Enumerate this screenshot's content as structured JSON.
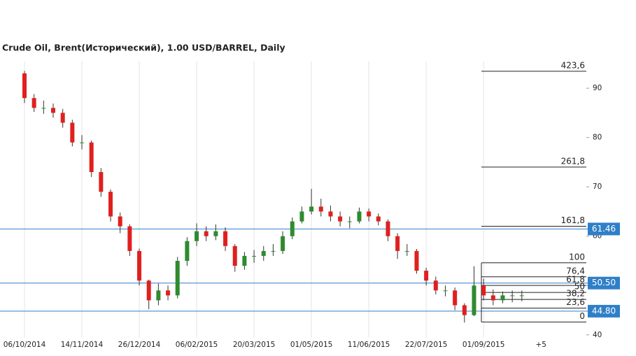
{
  "chart_data": {
    "type": "candlestick",
    "title": "Crude Oil, Brent(Исторический), 1.00 USD/BARREL, Daily",
    "categories": [
      "06/10/2014",
      null,
      null,
      null,
      null,
      null,
      "14/11/2014",
      null,
      null,
      null,
      null,
      null,
      "26/12/2014",
      null,
      null,
      null,
      null,
      null,
      "06/02/2015",
      null,
      null,
      null,
      null,
      null,
      "20/03/2015",
      null,
      null,
      null,
      null,
      null,
      "01/05/2015",
      null,
      null,
      null,
      null,
      null,
      "11/06/2015",
      null,
      null,
      null,
      null,
      null,
      "22/07/2015",
      null,
      null,
      null,
      null,
      null,
      "01/09/2015",
      null,
      null,
      null,
      null,
      null,
      "+5"
    ],
    "open": [
      93,
      88,
      86,
      86,
      85,
      83,
      79,
      79,
      73,
      69,
      64,
      62,
      57,
      51,
      47,
      49,
      48,
      55,
      59,
      61,
      60,
      61,
      58,
      54,
      56,
      56,
      57,
      57,
      60,
      63,
      65,
      66,
      65,
      64,
      63,
      63,
      65,
      64,
      63,
      60,
      57,
      57,
      53,
      51,
      49,
      49,
      46,
      44,
      50,
      48,
      47,
      48,
      48,
      null,
      null
    ],
    "high": [
      93.5,
      88.8,
      87.5,
      86.9,
      85.8,
      83.6,
      80.5,
      79.4,
      73.8,
      69.5,
      64.8,
      62.4,
      57.5,
      51.2,
      50.4,
      50,
      55.8,
      59.8,
      62.6,
      62,
      62.4,
      61.8,
      58.4,
      56.8,
      57.2,
      58,
      58.4,
      61,
      63.8,
      66,
      69.6,
      67.6,
      66.2,
      65,
      64,
      65.8,
      65.6,
      64.6,
      63.4,
      60.6,
      58.4,
      57.4,
      53.6,
      51.8,
      50,
      49.6,
      46.4,
      53.9,
      51.4,
      49.2,
      48.8,
      49,
      49,
      null,
      null
    ],
    "low": [
      87,
      85.2,
      84.8,
      84,
      82,
      78.2,
      77.6,
      72,
      68,
      63,
      60.6,
      56,
      50,
      45.2,
      46,
      47,
      47.4,
      54,
      58,
      59,
      59.2,
      57,
      52.8,
      53.2,
      54.6,
      55,
      56,
      56.4,
      59.4,
      62.6,
      64.4,
      64,
      63,
      62,
      61.6,
      62.6,
      63,
      62.2,
      59,
      55.4,
      56,
      52.4,
      50,
      48.2,
      47.8,
      45,
      42.5,
      43.8,
      47,
      46,
      46.4,
      46.6,
      46.8,
      null,
      null
    ],
    "close": [
      88,
      86,
      86,
      85,
      83,
      79,
      79,
      73,
      69,
      64,
      62,
      57,
      51,
      47,
      49,
      48,
      55,
      59,
      61,
      60,
      61,
      58,
      54,
      56,
      56,
      57,
      57,
      60,
      63,
      65,
      66,
      65,
      64,
      63,
      63,
      65,
      64,
      63,
      60,
      57,
      57,
      53,
      51,
      49,
      49,
      46,
      44,
      50,
      48,
      47,
      48,
      48,
      48,
      null,
      null
    ],
    "up_color": "#2e8b2e",
    "down_color": "#e0201e",
    "ylim": [
      39.4,
      95.4
    ],
    "yticks": [
      40,
      50,
      60,
      70,
      80,
      90
    ],
    "grid": true,
    "levels": [
      61.46,
      {
        "value": 50.5,
        "label": "50.50"
      },
      {
        "value": 44.8,
        "label": "44.80"
      }
    ],
    "level_color": "#2f7fc8",
    "fib_low": 42.6,
    "fib_high": 54.6,
    "fib_levels": [
      {
        "value": 423.6,
        "label": "423,6"
      },
      {
        "value": 261.8,
        "label": "261,8"
      },
      {
        "value": 161.8,
        "label": "161,8"
      },
      100,
      {
        "value": 76.4,
        "label": "76,4"
      },
      {
        "value": 61.8,
        "label": "61,8"
      },
      50,
      {
        "value": 38.2,
        "label": "38,2"
      },
      {
        "value": 23.6,
        "label": "23,6"
      },
      0
    ]
  }
}
